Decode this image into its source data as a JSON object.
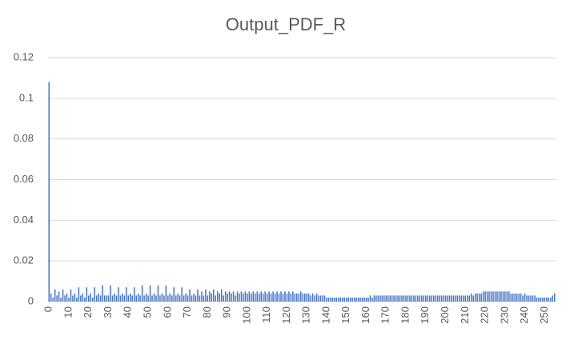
{
  "chart_data": {
    "type": "bar",
    "title": "Output_PDF_R",
    "categories": [
      "0",
      null,
      null,
      null,
      null,
      null,
      null,
      null,
      null,
      null,
      "10",
      null,
      null,
      null,
      null,
      null,
      null,
      null,
      null,
      null,
      "20",
      null,
      null,
      null,
      null,
      null,
      null,
      null,
      null,
      null,
      "30",
      null,
      null,
      null,
      null,
      null,
      null,
      null,
      null,
      null,
      "40",
      null,
      null,
      null,
      null,
      null,
      null,
      null,
      null,
      null,
      "50",
      null,
      null,
      null,
      null,
      null,
      null,
      null,
      null,
      null,
      "60",
      null,
      null,
      null,
      null,
      null,
      null,
      null,
      null,
      null,
      "70",
      null,
      null,
      null,
      null,
      null,
      null,
      null,
      null,
      null,
      "80",
      null,
      null,
      null,
      null,
      null,
      null,
      null,
      null,
      null,
      "90",
      null,
      null,
      null,
      null,
      null,
      null,
      null,
      null,
      null,
      "100",
      null,
      null,
      null,
      null,
      null,
      null,
      null,
      null,
      null,
      "110",
      null,
      null,
      null,
      null,
      null,
      null,
      null,
      null,
      null,
      "120",
      null,
      null,
      null,
      null,
      null,
      null,
      null,
      null,
      null,
      "130",
      null,
      null,
      null,
      null,
      null,
      null,
      null,
      null,
      null,
      "140",
      null,
      null,
      null,
      null,
      null,
      null,
      null,
      null,
      null,
      "150",
      null,
      null,
      null,
      null,
      null,
      null,
      null,
      null,
      null,
      "160",
      null,
      null,
      null,
      null,
      null,
      null,
      null,
      null,
      null,
      "170",
      null,
      null,
      null,
      null,
      null,
      null,
      null,
      null,
      null,
      "180",
      null,
      null,
      null,
      null,
      null,
      null,
      null,
      null,
      null,
      "190",
      null,
      null,
      null,
      null,
      null,
      null,
      null,
      null,
      null,
      "200",
      null,
      null,
      null,
      null,
      null,
      null,
      null,
      null,
      null,
      "210",
      null,
      null,
      null,
      null,
      null,
      null,
      null,
      null,
      null,
      "220",
      null,
      null,
      null,
      null,
      null,
      null,
      null,
      null,
      null,
      "230",
      null,
      null,
      null,
      null,
      null,
      null,
      null,
      null,
      null,
      "240",
      null,
      null,
      null,
      null,
      null,
      null,
      null,
      null,
      null,
      "250",
      null,
      null,
      null,
      null,
      null
    ],
    "values": [
      0.108,
      0.004,
      0.002,
      0.006,
      0.003,
      0.005,
      0.002,
      0.006,
      0.003,
      0.004,
      0.002,
      0.006,
      0.003,
      0.004,
      0.002,
      0.007,
      0.003,
      0.004,
      0.002,
      0.007,
      0.003,
      0.004,
      0.002,
      0.007,
      0.003,
      0.004,
      0.003,
      0.008,
      0.003,
      0.003,
      0.003,
      0.008,
      0.003,
      0.004,
      0.003,
      0.007,
      0.003,
      0.004,
      0.003,
      0.007,
      0.003,
      0.004,
      0.003,
      0.007,
      0.003,
      0.004,
      0.003,
      0.008,
      0.003,
      0.004,
      0.003,
      0.008,
      0.003,
      0.004,
      0.003,
      0.008,
      0.003,
      0.004,
      0.003,
      0.008,
      0.003,
      0.004,
      0.003,
      0.007,
      0.003,
      0.004,
      0.003,
      0.007,
      0.003,
      0.004,
      0.003,
      0.006,
      0.003,
      0.004,
      0.003,
      0.006,
      0.003,
      0.005,
      0.003,
      0.006,
      0.003,
      0.005,
      0.004,
      0.006,
      0.003,
      0.005,
      0.004,
      0.006,
      0.003,
      0.005,
      0.004,
      0.005,
      0.004,
      0.005,
      0.003,
      0.005,
      0.004,
      0.005,
      0.004,
      0.005,
      0.004,
      0.005,
      0.004,
      0.005,
      0.004,
      0.005,
      0.004,
      0.005,
      0.004,
      0.005,
      0.004,
      0.005,
      0.004,
      0.005,
      0.004,
      0.005,
      0.004,
      0.005,
      0.004,
      0.005,
      0.004,
      0.005,
      0.004,
      0.005,
      0.004,
      0.004,
      0.004,
      0.005,
      0.004,
      0.004,
      0.004,
      0.004,
      0.003,
      0.004,
      0.003,
      0.004,
      0.003,
      0.003,
      0.003,
      0.003,
      0.002,
      0.002,
      0.002,
      0.002,
      0.002,
      0.002,
      0.002,
      0.002,
      0.002,
      0.002,
      0.002,
      0.002,
      0.002,
      0.002,
      0.002,
      0.002,
      0.002,
      0.002,
      0.002,
      0.002,
      0.002,
      0.002,
      0.003,
      0.002,
      0.003,
      0.003,
      0.003,
      0.003,
      0.003,
      0.003,
      0.003,
      0.003,
      0.003,
      0.003,
      0.003,
      0.003,
      0.003,
      0.003,
      0.003,
      0.003,
      0.003,
      0.003,
      0.003,
      0.003,
      0.003,
      0.003,
      0.003,
      0.003,
      0.003,
      0.003,
      0.003,
      0.003,
      0.003,
      0.003,
      0.003,
      0.003,
      0.003,
      0.003,
      0.003,
      0.003,
      0.003,
      0.003,
      0.003,
      0.003,
      0.003,
      0.003,
      0.003,
      0.003,
      0.003,
      0.003,
      0.003,
      0.003,
      0.003,
      0.004,
      0.003,
      0.004,
      0.004,
      0.004,
      0.004,
      0.005,
      0.005,
      0.005,
      0.005,
      0.005,
      0.005,
      0.005,
      0.005,
      0.005,
      0.005,
      0.005,
      0.005,
      0.005,
      0.005,
      0.004,
      0.004,
      0.004,
      0.004,
      0.004,
      0.004,
      0.003,
      0.004,
      0.003,
      0.003,
      0.003,
      0.003,
      0.003,
      0.002,
      0.002,
      0.002,
      0.002,
      0.002,
      0.002,
      0.002,
      0.002,
      0.003,
      0.004
    ],
    "color": "#4472c4",
    "ylim": [
      0,
      0.12
    ],
    "yticks": [
      0,
      0.02,
      0.04,
      0.06,
      0.08,
      0.1,
      0.12
    ],
    "grid": true
  }
}
